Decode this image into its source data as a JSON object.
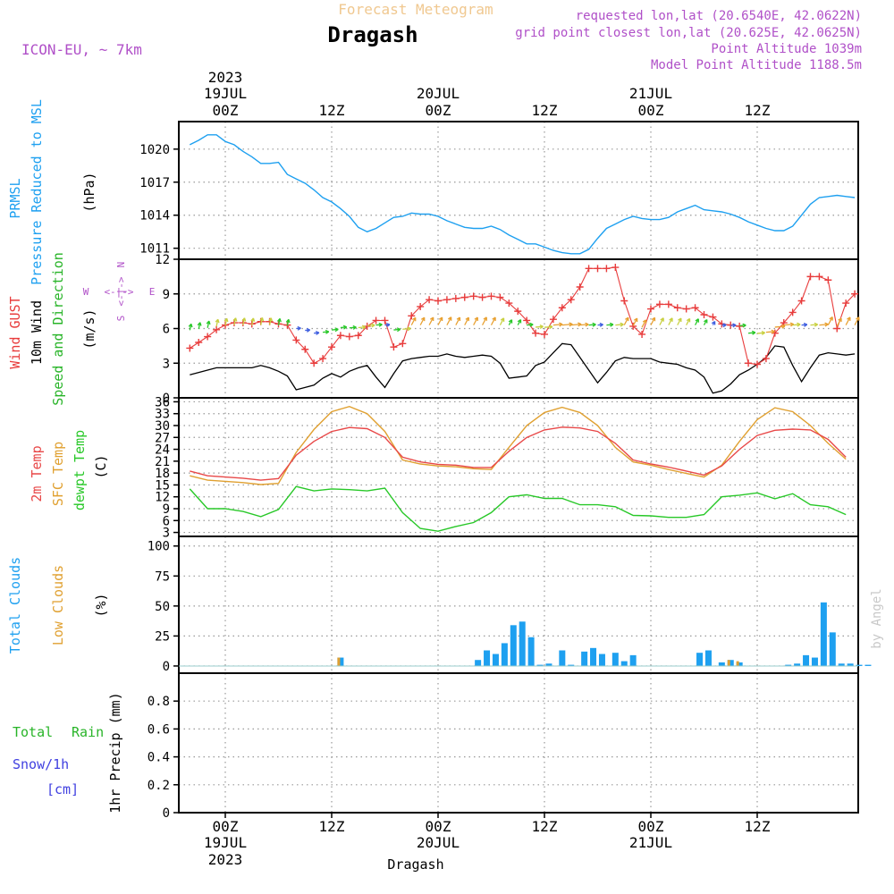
{
  "header": {
    "product_title": "Forecast Meteogram",
    "location": "Dragash",
    "model": "ICON-EU, ~ 7km",
    "requested_point": "requested lon,lat (20.6540E, 42.0622N)",
    "grid_point": "grid point closest lon,lat (20.625E, 42.0625N)",
    "point_altitude": "Point Altitude 1039m",
    "model_point_altitude": "Model Point Altitude 1188.5m",
    "footer_location": "Dragash",
    "credit": "by Angel"
  },
  "time_axis": {
    "top_labels": [
      {
        "time": "00Z",
        "day": "19JUL",
        "year": "2023"
      },
      {
        "time": "12Z",
        "day": "",
        "year": ""
      },
      {
        "time": "00Z",
        "day": "20JUL",
        "year": ""
      },
      {
        "time": "12Z",
        "day": "",
        "year": ""
      },
      {
        "time": "00Z",
        "day": "21JUL",
        "year": ""
      },
      {
        "time": "12Z",
        "day": "",
        "year": ""
      }
    ],
    "bottom_labels": [
      {
        "time": "00Z",
        "day": "19JUL",
        "year": "2023"
      },
      {
        "time": "12Z",
        "day": "",
        "year": ""
      },
      {
        "time": "00Z",
        "day": "20JUL",
        "year": ""
      },
      {
        "time": "12Z",
        "day": "",
        "year": ""
      },
      {
        "time": "00Z",
        "day": "21JUL",
        "year": ""
      },
      {
        "time": "12Z",
        "day": "",
        "year": ""
      }
    ]
  },
  "panels": {
    "pressure": {
      "label_line1": "PRMSL",
      "label_line2": "Pressure Reduced to MSL",
      "unit": "(hPa)",
      "ticks": [
        "1011",
        "1014",
        "1017",
        "1020"
      ]
    },
    "wind": {
      "label_gust": "Wind GUST",
      "label_10m": "10m Wind",
      "label_speed_dir": "Speed and Direction",
      "unit": "(m/s)",
      "compass_n": "N",
      "compass_s": "S",
      "compass_w": "W",
      "compass_e": "E",
      "ticks": [
        "0",
        "3",
        "6",
        "9",
        "12"
      ]
    },
    "temperature": {
      "label_2m": "2m Temp",
      "label_sfc": "SFC Temp",
      "label_dewpt": "dewpt Temp",
      "unit": "(C)",
      "ticks": [
        "3",
        "6",
        "9",
        "12",
        "15",
        "18",
        "21",
        "24",
        "27",
        "30",
        "33",
        "36"
      ]
    },
    "clouds": {
      "label_total": "Total Clouds",
      "label_low": "Low Clouds",
      "unit": "(%)",
      "ticks": [
        "0",
        "25",
        "50",
        "75",
        "100"
      ]
    },
    "precip": {
      "label_total": "Total",
      "label_rain": "Rain",
      "label_snow": "Snow/1h",
      "label_cm": "[cm]",
      "unit": "1hr Precip (mm)",
      "ticks": [
        "0",
        "0.2",
        "0.4",
        "0.6",
        "0.8"
      ]
    }
  },
  "colors": {
    "pressure": "#1ea0f0",
    "gust": "#e83c3c",
    "wind10m": "#000000",
    "temp2m": "#e84848",
    "sfc": "#e0a030",
    "dewpt": "#28c828",
    "total_clouds": "#1ea0f0",
    "low_clouds": "#e0a030",
    "rain": "#28b428",
    "snow": "#4040e0",
    "product_title": "#f0c890",
    "meta": "#b050c8"
  },
  "chart_data": [
    {
      "type": "line",
      "title": "PRMSL",
      "ylabel": "(hPa)",
      "ylim": [
        1010,
        1022.5
      ],
      "x_hours": [
        -4,
        -3,
        -2,
        -1,
        0,
        1,
        2,
        3,
        4,
        5,
        6,
        7,
        8,
        9,
        10,
        11,
        12,
        13,
        14,
        15,
        16,
        17,
        18,
        19,
        20,
        21,
        22,
        23,
        24,
        25,
        26,
        27,
        28,
        29,
        30,
        31,
        32,
        33,
        34,
        35,
        36,
        37,
        38,
        39,
        40,
        41,
        42,
        43,
        44,
        45,
        46,
        47,
        48,
        49,
        50,
        51,
        52,
        53,
        54,
        55,
        56,
        57,
        58,
        59,
        60,
        61,
        62,
        63,
        64,
        65,
        66,
        67,
        68,
        69,
        70,
        71
      ],
      "series": [
        {
          "name": "PRMSL",
          "values": [
            1020.4,
            1020.8,
            1021.3,
            1021.3,
            1020.7,
            1020.4,
            1019.8,
            1019.3,
            1018.7,
            1018.7,
            1018.8,
            1017.7,
            1017.3,
            1016.9,
            1016.3,
            1015.6,
            1015.2,
            1014.6,
            1013.9,
            1012.9,
            1012.5,
            1012.8,
            1013.3,
            1013.8,
            1013.9,
            1014.2,
            1014.1,
            1014.1,
            1013.9,
            1013.5,
            1013.2,
            1012.9,
            1012.8,
            1012.8,
            1013.0,
            1012.7,
            1012.2,
            1011.8,
            1011.4,
            1011.4,
            1011.1,
            1010.8,
            1010.6,
            1010.5,
            1010.5,
            1010.9,
            1011.9,
            1012.8,
            1013.2,
            1013.6,
            1013.9,
            1013.7,
            1013.6,
            1013.6,
            1013.8,
            1014.3,
            1014.6,
            1014.9,
            1014.5,
            1014.4,
            1014.3,
            1014.1,
            1013.8,
            1013.4,
            1013.1,
            1012.8,
            1012.6,
            1012.6,
            1013.0,
            1014.0,
            1015.0,
            1015.6,
            1015.7,
            1015.8,
            1015.7,
            1015.6
          ]
        }
      ]
    },
    {
      "type": "line",
      "title": "Wind",
      "ylabel": "(m/s)",
      "ylim": [
        0,
        12
      ],
      "x_hours": [
        -4,
        -3,
        -2,
        -1,
        0,
        1,
        2,
        3,
        4,
        5,
        6,
        7,
        8,
        9,
        10,
        11,
        12,
        13,
        14,
        15,
        16,
        17,
        18,
        19,
        20,
        21,
        22,
        23,
        24,
        25,
        26,
        27,
        28,
        29,
        30,
        31,
        32,
        33,
        34,
        35,
        36,
        37,
        38,
        39,
        40,
        41,
        42,
        43,
        44,
        45,
        46,
        47,
        48,
        49,
        50,
        51,
        52,
        53,
        54,
        55,
        56,
        57,
        58,
        59,
        60,
        61,
        62,
        63,
        64,
        65,
        66,
        67,
        68,
        69,
        70,
        71
      ],
      "series": [
        {
          "name": "Wind GUST",
          "values": [
            4.3,
            4.8,
            5.3,
            5.9,
            6.3,
            6.5,
            6.5,
            6.4,
            6.6,
            6.6,
            6.4,
            6.3,
            5.0,
            4.2,
            3.0,
            3.4,
            4.4,
            5.4,
            5.3,
            5.4,
            6.2,
            6.7,
            6.7,
            4.4,
            4.7,
            7.1,
            7.9,
            8.5,
            8.4,
            8.5,
            8.6,
            8.7,
            8.8,
            8.7,
            8.8,
            8.7,
            8.2,
            7.5,
            6.7,
            5.6,
            5.5,
            6.8,
            7.8,
            8.5,
            9.6,
            11.2,
            11.2,
            11.2,
            11.3,
            8.4,
            6.2,
            5.5,
            7.7,
            8.1,
            8.1,
            7.8,
            7.7,
            7.8,
            7.2,
            7.0,
            6.4,
            6.3,
            6.2,
            3.0,
            2.9,
            3.4,
            5.6,
            6.5,
            7.4,
            8.4,
            10.5,
            10.5,
            10.2,
            6.0,
            8.2,
            9.0
          ],
          "_note": "gust"
        },
        {
          "name": "10m Wind",
          "values": [
            2.0,
            2.2,
            2.4,
            2.6,
            2.6,
            2.6,
            2.6,
            2.6,
            2.8,
            2.6,
            2.3,
            1.9,
            0.7,
            0.9,
            1.1,
            1.7,
            2.1,
            1.8,
            2.3,
            2.6,
            2.8,
            1.8,
            0.9,
            2.1,
            3.2,
            3.4,
            3.5,
            3.6,
            3.6,
            3.8,
            3.6,
            3.5,
            3.6,
            3.7,
            3.6,
            3.0,
            1.7,
            1.8,
            1.9,
            2.8,
            3.1,
            3.9,
            4.7,
            4.6,
            3.5,
            2.4,
            1.3,
            2.2,
            3.2,
            3.5,
            3.4,
            3.4,
            3.4,
            3.1,
            3.0,
            2.9,
            2.6,
            2.4,
            1.8,
            0.4,
            0.6,
            1.2,
            2.0,
            2.4,
            2.9,
            3.5,
            4.5,
            4.4,
            2.8,
            1.4,
            2.6,
            3.7,
            3.9,
            3.8,
            3.7,
            3.8
          ]
        }
      ]
    },
    {
      "type": "line",
      "title": "Temperature",
      "ylabel": "(C)",
      "ylim": [
        2,
        37
      ],
      "x_hours": [
        -4,
        -2,
        0,
        2,
        4,
        6,
        8,
        10,
        12,
        14,
        16,
        18,
        20,
        22,
        24,
        26,
        28,
        30,
        32,
        34,
        36,
        38,
        40,
        42,
        44,
        46,
        48,
        50,
        52,
        54,
        56,
        58,
        60,
        62,
        64,
        66,
        68,
        70,
        72
      ],
      "series": [
        {
          "name": "2m Temp",
          "values": [
            18.5,
            17.3,
            17.0,
            16.7,
            16.2,
            16.6,
            22.5,
            26.0,
            28.5,
            29.5,
            29.2,
            27.0,
            22.0,
            20.8,
            20.2,
            20.0,
            19.4,
            19.4,
            23.5,
            27.0,
            28.9,
            29.6,
            29.4,
            28.5,
            25.5,
            21.3,
            20.3,
            19.5,
            18.5,
            17.5,
            19.8,
            24.0,
            27.5,
            28.8,
            29.1,
            28.9,
            26.5,
            22.0,
            21.5
          ]
        },
        {
          "name": "SFC Temp",
          "values": [
            17.3,
            16.2,
            15.9,
            15.6,
            15.1,
            15.4,
            23.2,
            29.0,
            33.5,
            34.8,
            33.0,
            28.5,
            21.3,
            20.3,
            19.8,
            19.6,
            19.1,
            18.9,
            24.5,
            30.0,
            33.3,
            34.6,
            33.3,
            30.0,
            24.5,
            20.8,
            20.0,
            18.9,
            17.9,
            17.0,
            20.0,
            26.0,
            31.5,
            34.5,
            33.5,
            30.0,
            25.5,
            21.5,
            21.0
          ]
        },
        {
          "name": "dewpt Temp",
          "values": [
            14.0,
            9.0,
            9.0,
            8.3,
            7.0,
            8.8,
            14.6,
            13.5,
            14.0,
            13.8,
            13.5,
            14.2,
            8.0,
            4.0,
            3.3,
            4.5,
            5.5,
            8.0,
            12.0,
            12.5,
            11.6,
            11.6,
            10.0,
            10.0,
            9.5,
            7.3,
            7.2,
            6.8,
            6.8,
            7.5,
            12.0,
            12.4,
            13.0,
            11.5,
            12.8,
            10.0,
            9.5,
            7.5,
            9.0
          ]
        }
      ]
    },
    {
      "type": "bar",
      "title": "Clouds",
      "ylabel": "(%)",
      "ylim": [
        -6,
        108
      ],
      "x_hours": [
        13,
        28.5,
        29.5,
        30.5,
        31.5,
        32.5,
        33.5,
        34.5,
        35.5,
        36.5,
        38,
        39,
        40.5,
        41.5,
        42.5,
        44,
        45,
        46,
        53.5,
        54.5,
        56,
        57,
        58,
        63.5,
        64.5,
        65.5,
        66.5,
        67.5,
        68.5,
        69.5,
        70.5,
        71.5,
        72.5
      ],
      "series": [
        {
          "name": "Total Clouds",
          "values": [
            7,
            5,
            13,
            10,
            19,
            34,
            37,
            24,
            1,
            2,
            13,
            1,
            12,
            15,
            10,
            11,
            4,
            9,
            11,
            13,
            3,
            5,
            3,
            1,
            2,
            9,
            7,
            53,
            28,
            2,
            2,
            1,
            1
          ]
        },
        {
          "name": "Low Clouds",
          "values": [
            7,
            0,
            0,
            0,
            0,
            0,
            0,
            0,
            0,
            0,
            0,
            0,
            0,
            0,
            0,
            0,
            0,
            0,
            0,
            0,
            0,
            5,
            4,
            0,
            0,
            0,
            0,
            0,
            0,
            0,
            0,
            0,
            0
          ]
        }
      ]
    },
    {
      "type": "bar",
      "title": "1hr Precip",
      "ylabel": "1hr Precip (mm)",
      "ylim": [
        0,
        1
      ],
      "series": [
        {
          "name": "Total Rain",
          "values": []
        },
        {
          "name": "Snow/1h",
          "values": []
        }
      ]
    }
  ]
}
